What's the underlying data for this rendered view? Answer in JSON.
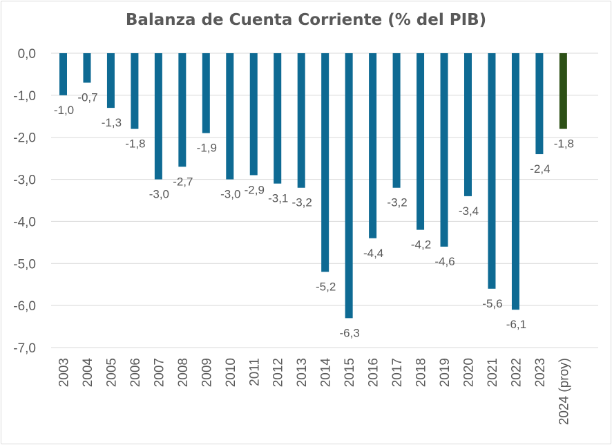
{
  "chart_data": {
    "type": "bar",
    "title": "Balanza de Cuenta Corriente (% del PIB)",
    "categories": [
      "2003",
      "2004",
      "2005",
      "2006",
      "2007",
      "2008",
      "2009",
      "2010",
      "2011",
      "2012",
      "2013",
      "2014",
      "2015",
      "2016",
      "2017",
      "2018",
      "2019",
      "2020",
      "2021",
      "2022",
      "2023",
      "2024 (proy)"
    ],
    "values": [
      -1.0,
      -0.7,
      -1.3,
      -1.8,
      -3.0,
      -2.7,
      -1.9,
      -3.0,
      -2.9,
      -3.1,
      -3.2,
      -5.2,
      -6.3,
      -4.4,
      -3.2,
      -4.2,
      -4.6,
      -3.4,
      -5.6,
      -6.1,
      -2.4,
      -1.8
    ],
    "data_labels": [
      "-1,0",
      "-0,7",
      "-1,3",
      "-1,8",
      "-3,0",
      "-2,7",
      "-1,9",
      "-3,0",
      "-2,9",
      "-3,1",
      "-3,2",
      "-5,2",
      "-6,3",
      "-4,4",
      "-3,2",
      "-4,2",
      "-4,6",
      "-3,4",
      "-5,6",
      "-6,1",
      "-2,4",
      "-1,8"
    ],
    "ylim": [
      -7,
      0
    ],
    "yticks": [
      "0,0",
      "-1,0",
      "-2,0",
      "-3,0",
      "-4,0",
      "-5,0",
      "-6,0",
      "-7,0"
    ],
    "grid": true,
    "legend": "none",
    "colors": {
      "bar": "#0e6a93",
      "highlight": "#2d5016",
      "grid": "#d9d9d9",
      "text": "#595959"
    },
    "highlight_categories": [
      "2024 (proy)"
    ]
  }
}
